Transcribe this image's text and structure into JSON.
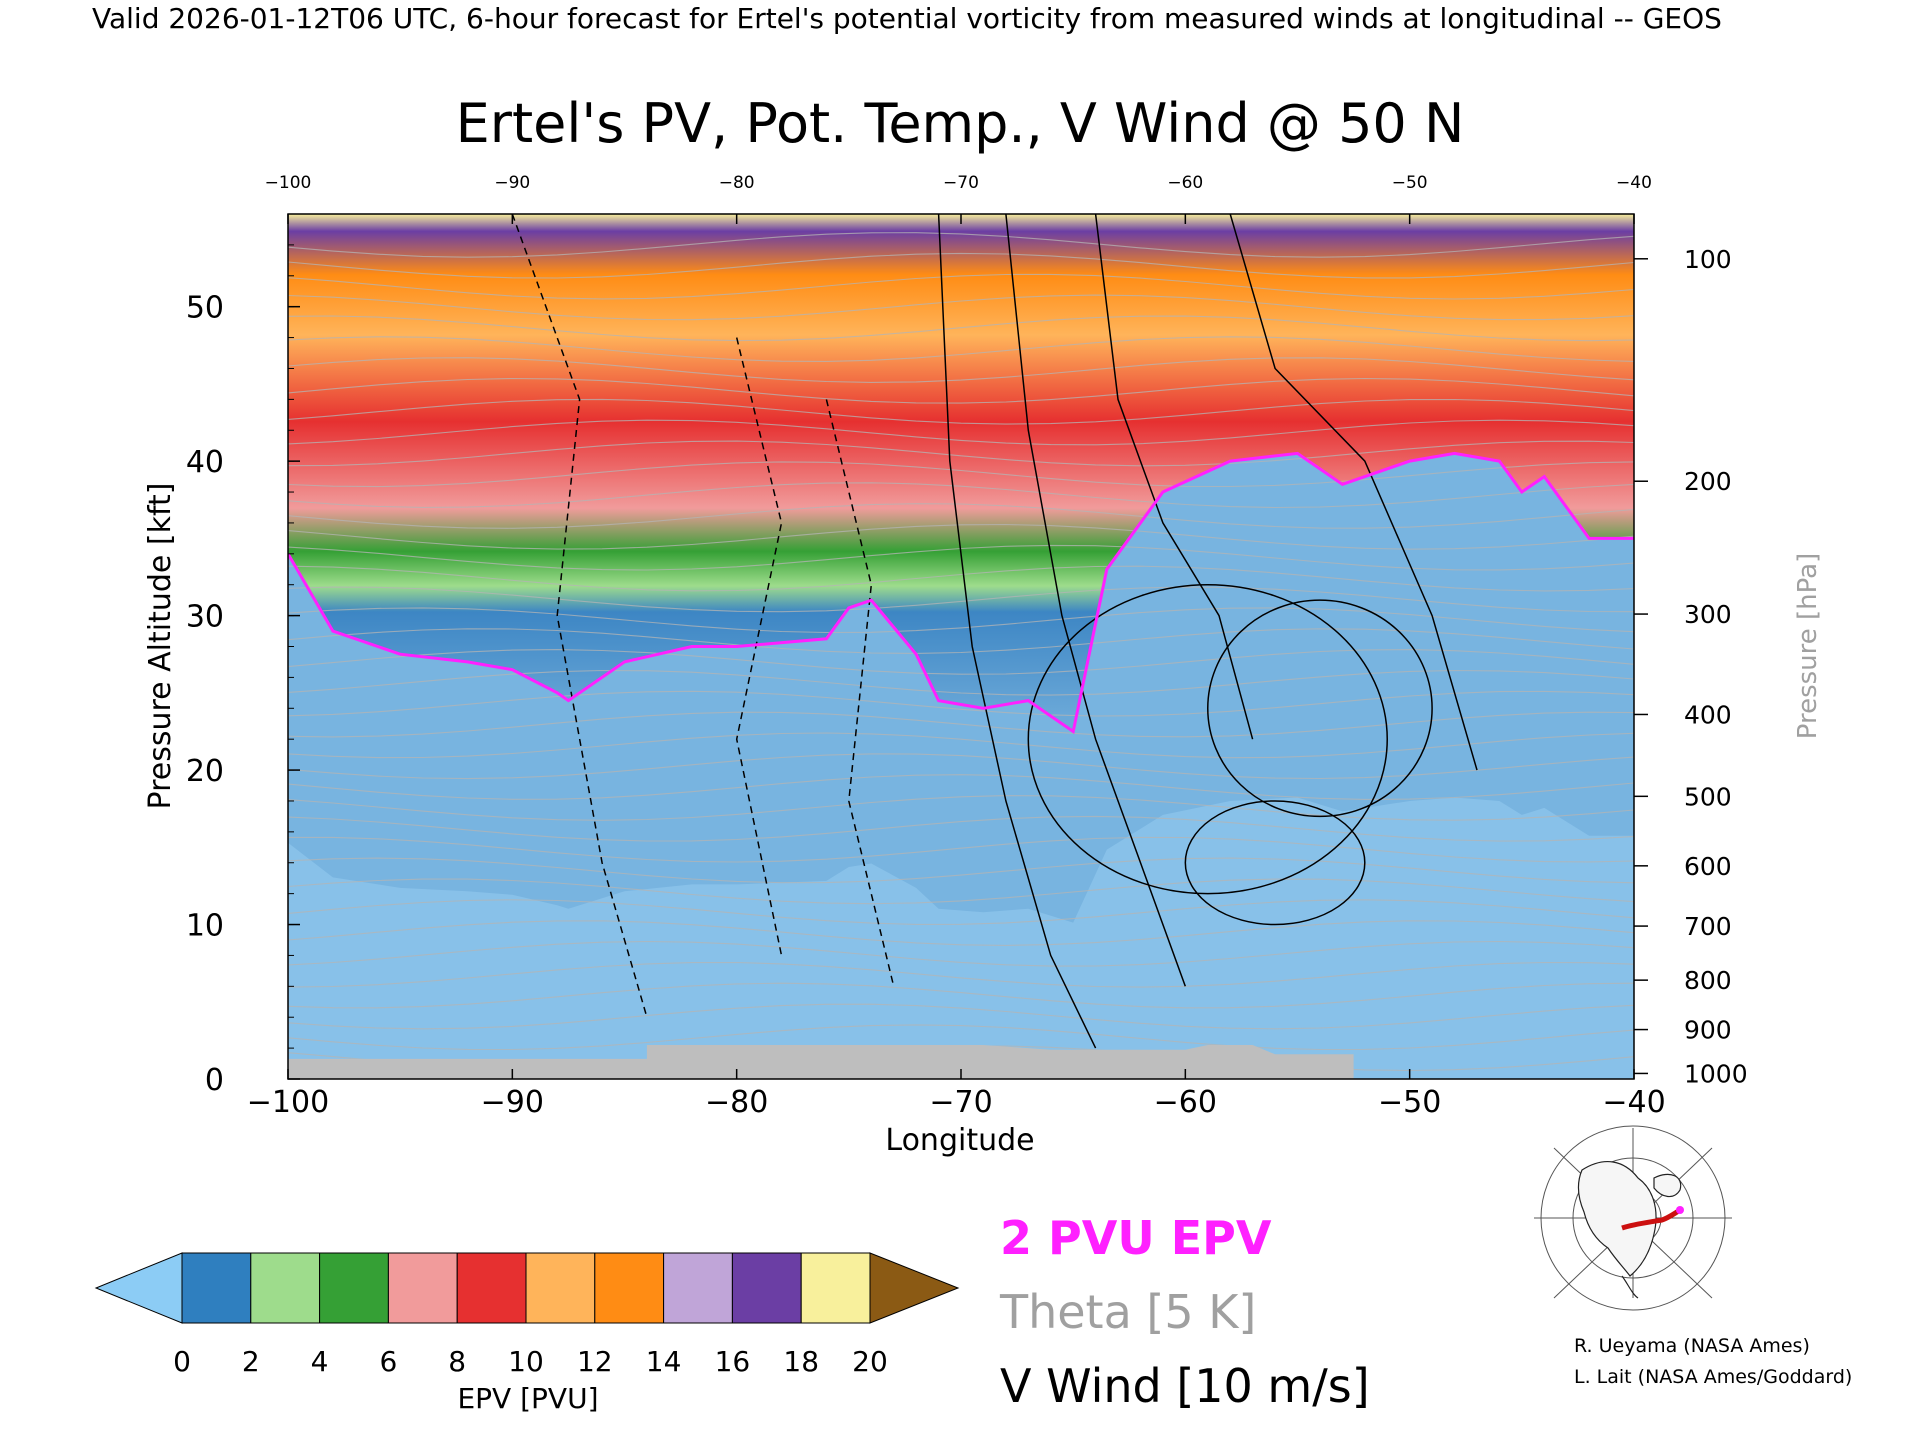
{
  "header": {
    "banner": "Valid 2026-01-12T06 UTC, 6-hour forecast for Ertel's potential vorticity from measured winds at longitudinal -- GEOS"
  },
  "chart_data": {
    "type": "heatmap",
    "title": "Ertel's PV, Pot. Temp., V Wind @ 50 N",
    "xlabel": "Longitude",
    "ylabel": "Pressure Altitude [kft]",
    "ylabel_right": "Pressure [hPa]",
    "xlim": [
      -100,
      -40
    ],
    "ylim": [
      0,
      56
    ],
    "x_ticks": [
      "-100",
      "-90",
      "-80",
      "-70",
      "-60",
      "-50",
      "-40"
    ],
    "y_ticks": [
      "0",
      "10",
      "20",
      "30",
      "40",
      "50"
    ],
    "pressure_ticks": [
      {
        "label": "100",
        "kft": 53.1
      },
      {
        "label": "200",
        "kft": 38.7
      },
      {
        "label": "300",
        "kft": 30.1
      },
      {
        "label": "400",
        "kft": 23.6
      },
      {
        "label": "500",
        "kft": 18.3
      },
      {
        "label": "600",
        "kft": 13.8
      },
      {
        "label": "700",
        "kft": 9.9
      },
      {
        "label": "800",
        "kft": 6.4
      },
      {
        "label": "900",
        "kft": 3.2
      },
      {
        "label": "1000",
        "kft": 0.36
      }
    ],
    "tropopause_2pvu_kft": [
      [
        -100,
        34
      ],
      [
        -98,
        29
      ],
      [
        -95,
        27.5
      ],
      [
        -92,
        27
      ],
      [
        -90,
        26.5
      ],
      [
        -88,
        25
      ],
      [
        -87.5,
        24.5
      ],
      [
        -85,
        27
      ],
      [
        -82,
        28
      ],
      [
        -80,
        28
      ],
      [
        -76,
        28.5
      ],
      [
        -75,
        30.5
      ],
      [
        -74,
        31
      ],
      [
        -72,
        27.5
      ],
      [
        -71,
        24.5
      ],
      [
        -69,
        24
      ],
      [
        -67,
        24.5
      ],
      [
        -65,
        22.5
      ],
      [
        -64.5,
        26
      ],
      [
        -63.5,
        33
      ],
      [
        -61,
        38
      ],
      [
        -58,
        40
      ],
      [
        -55,
        40.5
      ],
      [
        -53,
        38.5
      ],
      [
        -50,
        40
      ],
      [
        -48,
        40.5
      ],
      [
        -46,
        40
      ],
      [
        -45,
        38
      ],
      [
        -44,
        39
      ],
      [
        -42,
        35
      ],
      [
        -40,
        35
      ]
    ],
    "colorbar": {
      "label": "EPV [PVU]",
      "ticks": [
        "0",
        "2",
        "4",
        "6",
        "8",
        "10",
        "12",
        "14",
        "16",
        "18",
        "20"
      ],
      "colors": [
        "#8cccf5",
        "#2f7fbf",
        "#9edc8c",
        "#35a035",
        "#f19b9b",
        "#e63030",
        "#ffb45a",
        "#ff8c14",
        "#c0a5d8",
        "#6b3ea4",
        "#f8f09c",
        "#8b5a14"
      ]
    },
    "legend": {
      "pv_contour": "2 PVU EPV",
      "theta_contour": "Theta [5 K]",
      "wind_contour": "V Wind [10 m/s]",
      "pv_color": "#ff20ff",
      "theta_color": "#a0a0a0",
      "wind_color": "#000000"
    }
  },
  "credits": {
    "line1": "R. Ueyama (NASA Ames)",
    "line2": "L. Lait (NASA Ames/Goddard)"
  }
}
